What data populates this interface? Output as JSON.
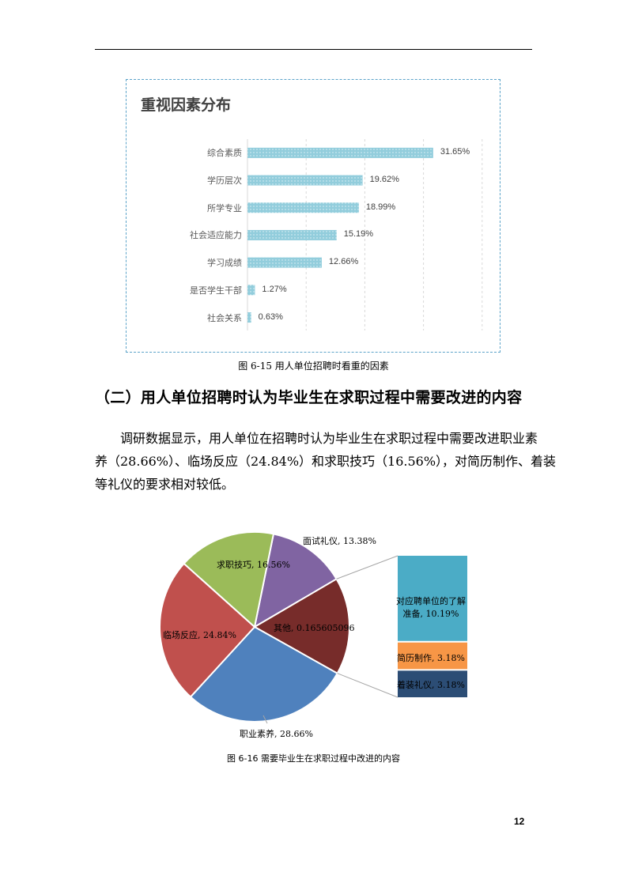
{
  "figure_6_15": {
    "caption": "图 6-15 用人单位招聘时看重的因素",
    "chart_data": {
      "type": "bar",
      "orientation": "horizontal",
      "title": "重视因素分布",
      "categories": [
        "综合素质",
        "学历层次",
        "所学专业",
        "社会适应能力",
        "学习成绩",
        "是否学生干部",
        "社会关系"
      ],
      "values": [
        31.65,
        19.62,
        18.99,
        15.19,
        12.66,
        1.27,
        0.63
      ],
      "data_labels": [
        "31.65%",
        "19.62%",
        "18.99%",
        "15.19%",
        "12.66%",
        "1.27%",
        "0.63%"
      ],
      "xlim": [
        0,
        40
      ],
      "grid": "vertical dashed",
      "bar_color": "#92cddc",
      "pattern": "dotted"
    }
  },
  "section": {
    "heading": "（二）用人单位招聘时认为毕业生在求职过程中需要改进的内容",
    "paragraph_lines": [
      "调研数据显示，用人单位在招聘时认为毕业生在求职过程中需要改进职业素",
      "养（28.66%）、临场反应（24.84%）和求职技巧（16.56%），对简历制作、着装",
      "等礼仪的要求相对较低。"
    ]
  },
  "figure_6_16": {
    "caption": "图 6-16 需要毕业生在求职过程中改进的内容",
    "chart_data": {
      "type": "pie",
      "subtype": "bar-of-pie",
      "slices": [
        {
          "name": "面试礼仪",
          "value": 13.38,
          "label": "面试礼仪, 13.38%",
          "color": "#8064a2"
        },
        {
          "name": "其他",
          "value": 16.56,
          "label": "其他, 0.165605096",
          "color": "#772c2a"
        },
        {
          "name": "职业素养",
          "value": 28.66,
          "label": "职业素养, 28.66%",
          "color": "#4f81bd"
        },
        {
          "name": "临场反应",
          "value": 24.84,
          "label": "临场反应, 24.84%",
          "color": "#c0504d"
        },
        {
          "name": "求职技巧",
          "value": 16.56,
          "label": "求职技巧, 16.56%",
          "color": "#9bbb59"
        }
      ],
      "secondary": [
        {
          "name": "对应聘单位的了解准备",
          "value": 10.19,
          "label_line1": "对应聘单位的了解",
          "label_line2": "准备, 10.19%",
          "color": "#4bacc6"
        },
        {
          "name": "简历制作",
          "value": 3.18,
          "label": "简历制作, 3.18%",
          "color": "#f79646"
        },
        {
          "name": "着装礼仪",
          "value": 3.18,
          "label": "着装礼仪, 3.18%",
          "color": "#2c4d75"
        }
      ]
    }
  },
  "page_number": "12"
}
